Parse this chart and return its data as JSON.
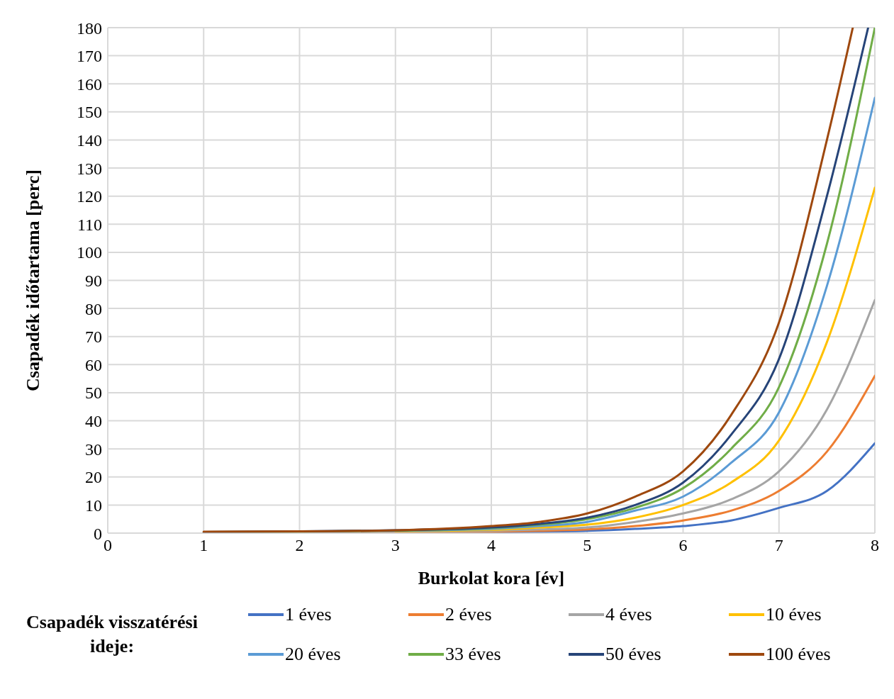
{
  "chart_data": {
    "type": "line",
    "xlabel": "Burkolat kora [év]",
    "ylabel": "Csapadék időtartama [perc]",
    "legend_title": "Csapadék visszatérési ideje:",
    "xlim": [
      0,
      8
    ],
    "xticks": [
      0,
      1,
      2,
      3,
      4,
      5,
      6,
      7,
      8
    ],
    "ylim": [
      0,
      180
    ],
    "yticks": [
      0,
      10,
      20,
      30,
      40,
      50,
      60,
      70,
      80,
      90,
      100,
      110,
      120,
      130,
      140,
      150,
      160,
      170,
      180
    ],
    "grid": true,
    "legend": "bottom",
    "marker": "none",
    "line_style": "solid",
    "x": [
      1,
      2,
      3,
      4,
      4.5,
      5,
      5.5,
      6,
      6.5,
      7,
      7.5,
      8
    ],
    "series": [
      {
        "name": "1 éves",
        "color": "#4472c4",
        "values": [
          null,
          null,
          0.2,
          0.3,
          0.5,
          0.8,
          1.5,
          2.5,
          4.5,
          9,
          15,
          32
        ]
      },
      {
        "name": "2 éves",
        "color": "#ed7d31",
        "values": [
          0.1,
          0.2,
          0.3,
          0.5,
          0.8,
          1.3,
          2.5,
          4.5,
          8,
          15,
          29,
          56
        ]
      },
      {
        "name": "4 éves",
        "color": "#a5a5a5",
        "values": [
          0.2,
          0.3,
          0.5,
          0.8,
          1.3,
          2,
          4,
          7,
          12,
          22,
          44,
          83
        ]
      },
      {
        "name": "10 éves",
        "color": "#ffc000",
        "values": [
          null,
          null,
          0.7,
          1.2,
          2,
          3,
          5.5,
          10,
          18,
          33,
          68,
          123
        ]
      },
      {
        "name": "20 éves",
        "color": "#5b9bd5",
        "values": [
          null,
          null,
          0.8,
          1.5,
          2.5,
          4,
          8,
          13,
          25,
          43,
          88,
          155
        ]
      },
      {
        "name": "33 éves",
        "color": "#70ad47",
        "values": [
          0.4,
          0.5,
          0.9,
          1.8,
          3,
          5,
          9,
          16,
          30,
          52,
          103,
          180
        ]
      },
      {
        "name": "50 éves",
        "color": "#264478",
        "x": [
          1,
          2,
          3,
          4,
          4.5,
          5,
          5.5,
          6,
          6.5,
          7,
          7.5,
          7.93
        ],
        "values": [
          0.4,
          0.6,
          1,
          2,
          3.3,
          5.5,
          10,
          18,
          35,
          62,
          120,
          180
        ]
      },
      {
        "name": "100 éves",
        "color": "#9e480e",
        "x": [
          1,
          2,
          3,
          4,
          4.5,
          5,
          5.5,
          6,
          6.5,
          7,
          7.5,
          7.77
        ],
        "values": [
          0.5,
          0.6,
          1,
          2.5,
          4,
          7,
          13,
          22,
          42,
          75,
          140,
          180
        ]
      }
    ]
  }
}
